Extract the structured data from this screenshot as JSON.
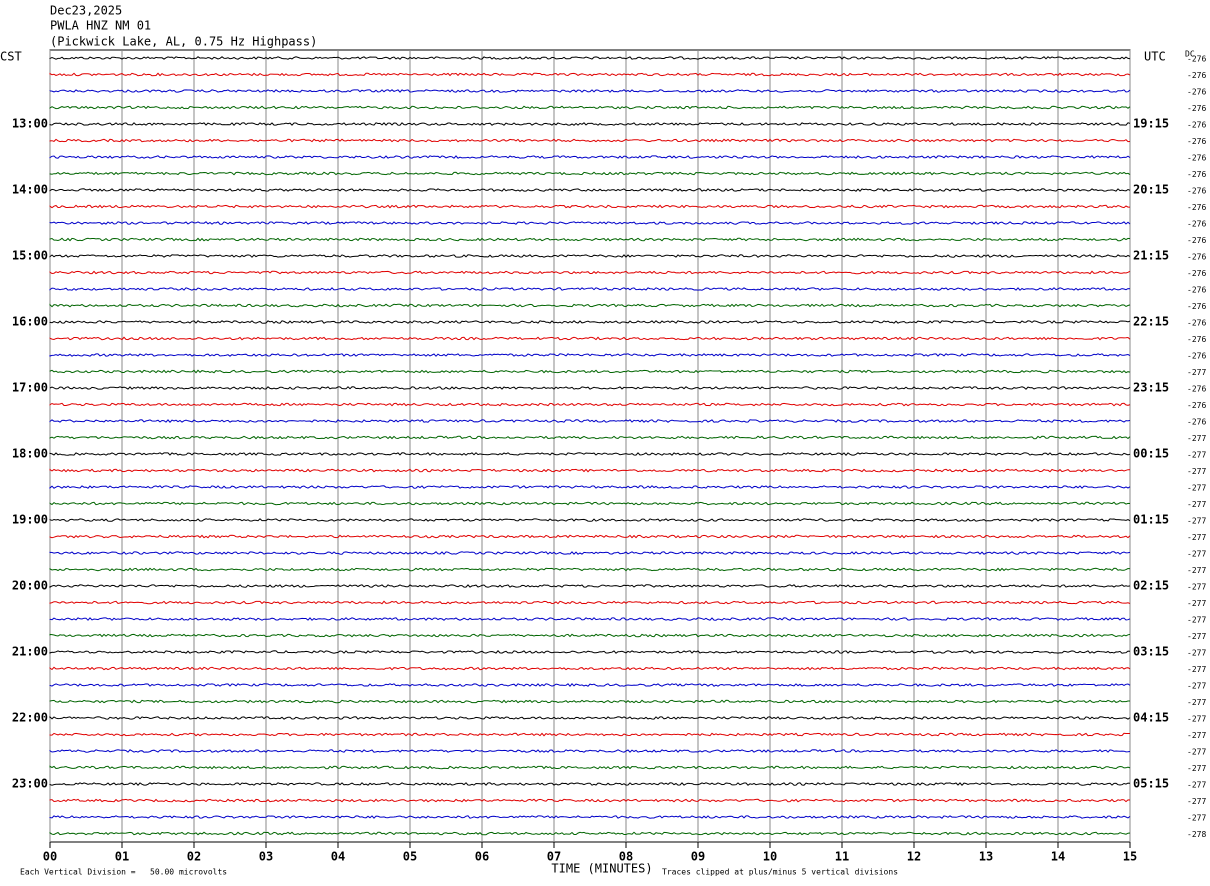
{
  "chart_data": {
    "type": "helicorder",
    "date": "Dec23,2025",
    "station": "PWLA HNZ NM 01",
    "subtitle": "(Pickwick Lake, AL, 0.75 Hz Highpass)",
    "left_axis_title": "CST",
    "right_axis_title": "UTC",
    "dc_title": "DC",
    "xlabel": "TIME (MINUTES)",
    "xlim": [
      0,
      15
    ],
    "xticks": [
      {
        "value": 0,
        "label": "00"
      },
      {
        "value": 1,
        "label": "01"
      },
      {
        "value": 2,
        "label": "02"
      },
      {
        "value": 3,
        "label": "03"
      },
      {
        "value": 4,
        "label": "04"
      },
      {
        "value": 5,
        "label": "05"
      },
      {
        "value": 6,
        "label": "06"
      },
      {
        "value": 7,
        "label": "07"
      },
      {
        "value": 8,
        "label": "08"
      },
      {
        "value": 9,
        "label": "09"
      },
      {
        "value": 10,
        "label": "10"
      },
      {
        "value": 11,
        "label": "11"
      },
      {
        "value": 12,
        "label": "12"
      },
      {
        "value": 13,
        "label": "13"
      },
      {
        "value": 14,
        "label": "14"
      },
      {
        "value": 15,
        "label": "15"
      }
    ],
    "grid": true,
    "trace_colors": [
      "#000000",
      "#e00000",
      "#0000c8",
      "#006400"
    ],
    "left_labels": [
      "13:00",
      "14:00",
      "15:00",
      "16:00",
      "17:00",
      "18:00",
      "19:00",
      "20:00",
      "21:00",
      "22:00",
      "23:00"
    ],
    "right_labels": [
      "19:15",
      "20:15",
      "21:15",
      "22:15",
      "23:15",
      "00:15",
      "01:15",
      "02:15",
      "03:15",
      "04:15",
      "05:15"
    ],
    "dc_offsets": [
      -276,
      -276,
      -276,
      -276,
      -276,
      -276,
      -276,
      -276,
      -276,
      -276,
      -276,
      -276,
      -276,
      -276,
      -276,
      -276,
      -276,
      -276,
      -276,
      -277,
      -276,
      -276,
      -276,
      -277,
      -277,
      -277,
      -277,
      -277,
      -277,
      -277,
      -277,
      -277,
      -277,
      -277,
      -277,
      -277,
      -277,
      -277,
      -277,
      -277,
      -277,
      -277,
      -277,
      -277,
      -277,
      -277,
      -277,
      -278
    ],
    "footer_left": "Each Vertical Division =   50.00 microvolts",
    "footer_right": "Traces clipped at plus/minus 5 vertical divisions"
  }
}
